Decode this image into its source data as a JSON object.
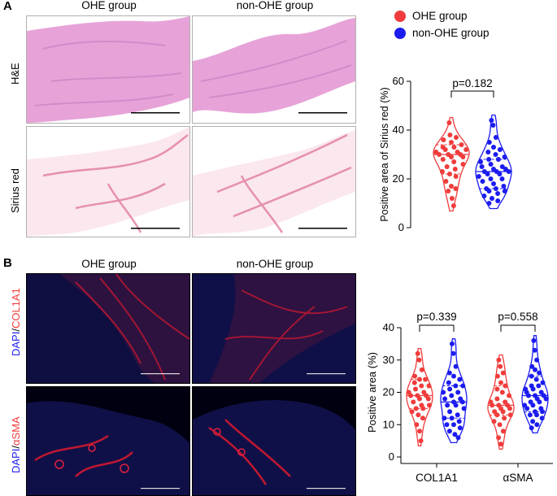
{
  "panels": {
    "a": {
      "letter": "A",
      "col_titles": [
        "OHE group",
        "non-OHE group"
      ],
      "row_labels": [
        "H&E",
        "Sirius red"
      ]
    },
    "b": {
      "letter": "B",
      "col_titles": [
        "OHE group",
        "non-OHE group"
      ],
      "row_labels": [
        {
          "p1": "DAPI",
          "sep": "/",
          "p2": "COL1A1"
        },
        {
          "p1": "DAPI",
          "sep": "/",
          "p2": "αSMA"
        }
      ]
    }
  },
  "legend": {
    "items": [
      {
        "label": "OHE group",
        "color": "#f03c3c"
      },
      {
        "label": "non-OHE group",
        "color": "#1c1cf0"
      }
    ]
  },
  "colors": {
    "ohe": "#f03c3c",
    "non_ohe": "#1c1cf0",
    "he_tissue": "#e7a3d8",
    "sirius_tissue": "#f1bccb",
    "if_background": "#070720"
  },
  "chart_data": [
    {
      "type": "violin",
      "ylabel": "Positive area of Sirius red (%)",
      "ylim": [
        0,
        60
      ],
      "yticks": [
        0,
        20,
        40,
        60
      ],
      "groups": [
        "OHE group",
        "non-OHE group"
      ],
      "annotation": "p=0.182",
      "series": [
        {
          "name": "OHE group",
          "median": 30,
          "q1": 22,
          "q3": 34,
          "values": [
            43,
            38,
            37,
            36,
            35,
            34,
            33,
            33,
            32,
            32,
            31,
            31,
            30,
            30,
            30,
            29,
            29,
            28,
            27,
            26,
            25,
            24,
            23,
            22,
            21,
            19,
            17,
            16,
            15,
            12,
            9
          ]
        },
        {
          "name": "non-OHE group",
          "median": 23,
          "q1": 16,
          "q3": 28,
          "values": [
            44,
            42,
            37,
            35,
            33,
            32,
            31,
            30,
            29,
            28,
            28,
            27,
            26,
            25,
            25,
            24,
            24,
            23,
            23,
            23,
            22,
            22,
            21,
            20,
            20,
            19,
            18,
            17,
            16,
            16,
            15,
            15,
            14,
            13,
            12,
            11,
            10
          ]
        }
      ]
    },
    {
      "type": "violin",
      "ylabel": "Positive area (%)",
      "ylim": [
        0,
        40
      ],
      "yticks": [
        0,
        10,
        20,
        30,
        40
      ],
      "categories": [
        "COL1A1",
        "αSMA"
      ],
      "annotations": [
        "p=0.339",
        "p=0.558"
      ],
      "series": [
        {
          "name": "OHE group",
          "category": "COL1A1",
          "median": 19,
          "q1": 15,
          "q3": 24,
          "values": [
            32,
            30,
            27,
            25,
            24,
            24,
            23,
            22,
            22,
            21,
            20,
            20,
            19,
            19,
            19,
            18,
            18,
            17,
            16,
            16,
            15,
            15,
            14,
            13,
            12,
            10,
            8,
            5
          ]
        },
        {
          "name": "non-OHE group",
          "category": "COL1A1",
          "median": 17,
          "q1": 12,
          "q3": 22,
          "values": [
            35,
            32,
            28,
            26,
            25,
            24,
            23,
            22,
            22,
            21,
            20,
            20,
            19,
            18,
            18,
            17,
            17,
            16,
            16,
            15,
            14,
            13,
            12,
            12,
            11,
            10,
            10,
            9,
            8,
            7,
            6
          ]
        },
        {
          "name": "OHE group",
          "category": "αSMA",
          "median": 16,
          "q1": 13,
          "q3": 22,
          "values": [
            30,
            28,
            26,
            25,
            23,
            22,
            21,
            20,
            19,
            18,
            17,
            17,
            16,
            16,
            16,
            15,
            15,
            14,
            14,
            13,
            13,
            12,
            11,
            10,
            8,
            6,
            4
          ]
        },
        {
          "name": "non-OHE group",
          "category": "αSMA",
          "median": 19,
          "q1": 14,
          "q3": 25,
          "values": [
            36,
            33,
            30,
            28,
            27,
            26,
            25,
            24,
            23,
            22,
            22,
            21,
            21,
            20,
            20,
            19,
            19,
            19,
            18,
            18,
            17,
            17,
            16,
            16,
            15,
            15,
            14,
            14,
            13,
            13,
            12,
            11,
            10,
            9
          ]
        }
      ]
    }
  ]
}
